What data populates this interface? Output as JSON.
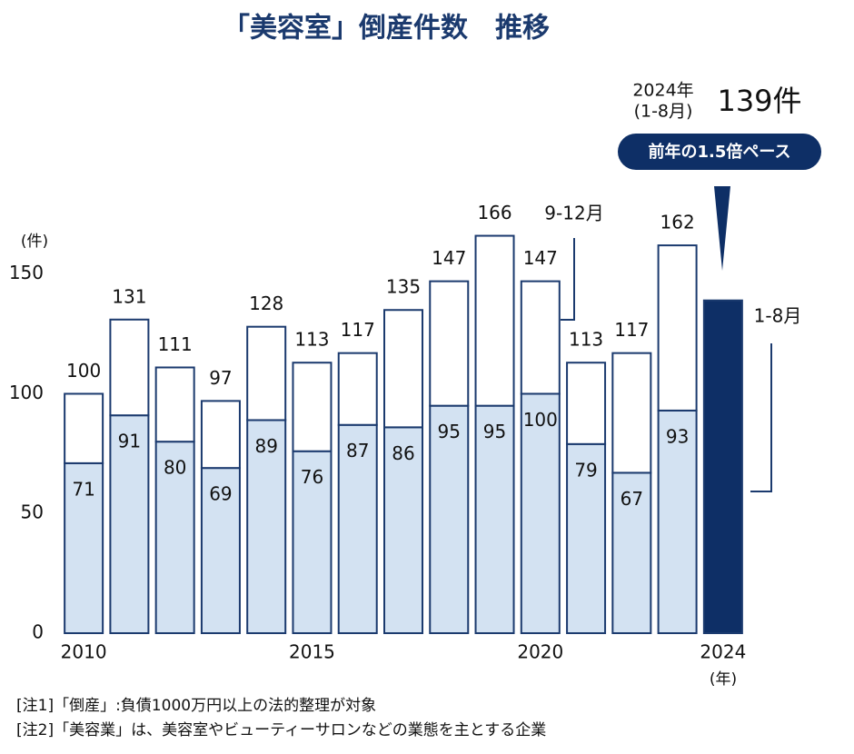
{
  "chart_data": {
    "type": "stacked-bar",
    "title": "「美容室」倒産件数　推移",
    "y_unit": "(件)",
    "x_unit": "(年)",
    "categories": [
      "2010",
      null,
      null,
      null,
      null,
      "2015",
      null,
      null,
      null,
      null,
      "2020",
      null,
      null,
      null,
      "2024"
    ],
    "series": [
      {
        "name": "1-8月",
        "color": "#d3e2f2",
        "values": [
          71,
          91,
          80,
          69,
          89,
          76,
          87,
          86,
          95,
          95,
          100,
          79,
          67,
          93,
          139
        ]
      },
      {
        "name": "9-12月",
        "color": "#ffffff",
        "values": [
          29,
          40,
          31,
          28,
          39,
          37,
          30,
          49,
          52,
          71,
          47,
          34,
          50,
          69,
          null
        ]
      }
    ],
    "totals": [
      100,
      131,
      111,
      97,
      128,
      113,
      117,
      135,
      147,
      166,
      147,
      113,
      117,
      162,
      null
    ],
    "highlight_color": "#0e2f66",
    "outline_color": "#1b3a6e",
    "ylim": [
      0,
      170
    ],
    "yticks": [
      0,
      50,
      100,
      150
    ],
    "annotation": {
      "line1": "2024年",
      "line2": "(1-8月)",
      "value": "139件",
      "badge": "前年の1.5倍ペース"
    },
    "notes": [
      "[注1]「倒産」:負債1000万円以上の法的整理が対象",
      "[注2]「美容業」は、美容室やビューティーサロンなどの業態を主とする企業"
    ]
  }
}
